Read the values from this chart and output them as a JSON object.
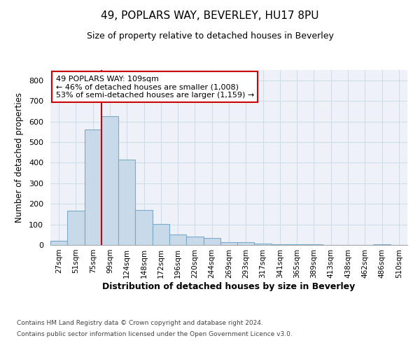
{
  "title": "49, POPLARS WAY, BEVERLEY, HU17 8PU",
  "subtitle": "Size of property relative to detached houses in Beverley",
  "xlabel": "Distribution of detached houses by size in Beverley",
  "ylabel": "Number of detached properties",
  "bar_color": "#c8daea",
  "bar_edge_color": "#7aaac8",
  "grid_color": "#d0dce8",
  "bg_color": "#eef2f8",
  "categories": [
    "27sqm",
    "51sqm",
    "75sqm",
    "99sqm",
    "124sqm",
    "148sqm",
    "172sqm",
    "196sqm",
    "220sqm",
    "244sqm",
    "269sqm",
    "293sqm",
    "317sqm",
    "341sqm",
    "365sqm",
    "389sqm",
    "413sqm",
    "438sqm",
    "462sqm",
    "486sqm",
    "510sqm"
  ],
  "values": [
    20,
    165,
    560,
    625,
    415,
    170,
    103,
    50,
    40,
    33,
    13,
    14,
    8,
    5,
    3,
    2,
    1,
    0,
    0,
    5,
    0
  ],
  "vline_color": "#cc0000",
  "vline_index": 3,
  "annotation_text": "49 POPLARS WAY: 109sqm\n← 46% of detached houses are smaller (1,008)\n53% of semi-detached houses are larger (1,159) →",
  "annotation_box_color": "#ffffff",
  "annotation_box_edge": "#cc0000",
  "ylim": [
    0,
    850
  ],
  "yticks": [
    0,
    100,
    200,
    300,
    400,
    500,
    600,
    700,
    800
  ],
  "footer1": "Contains HM Land Registry data © Crown copyright and database right 2024.",
  "footer2": "Contains public sector information licensed under the Open Government Licence v3.0."
}
